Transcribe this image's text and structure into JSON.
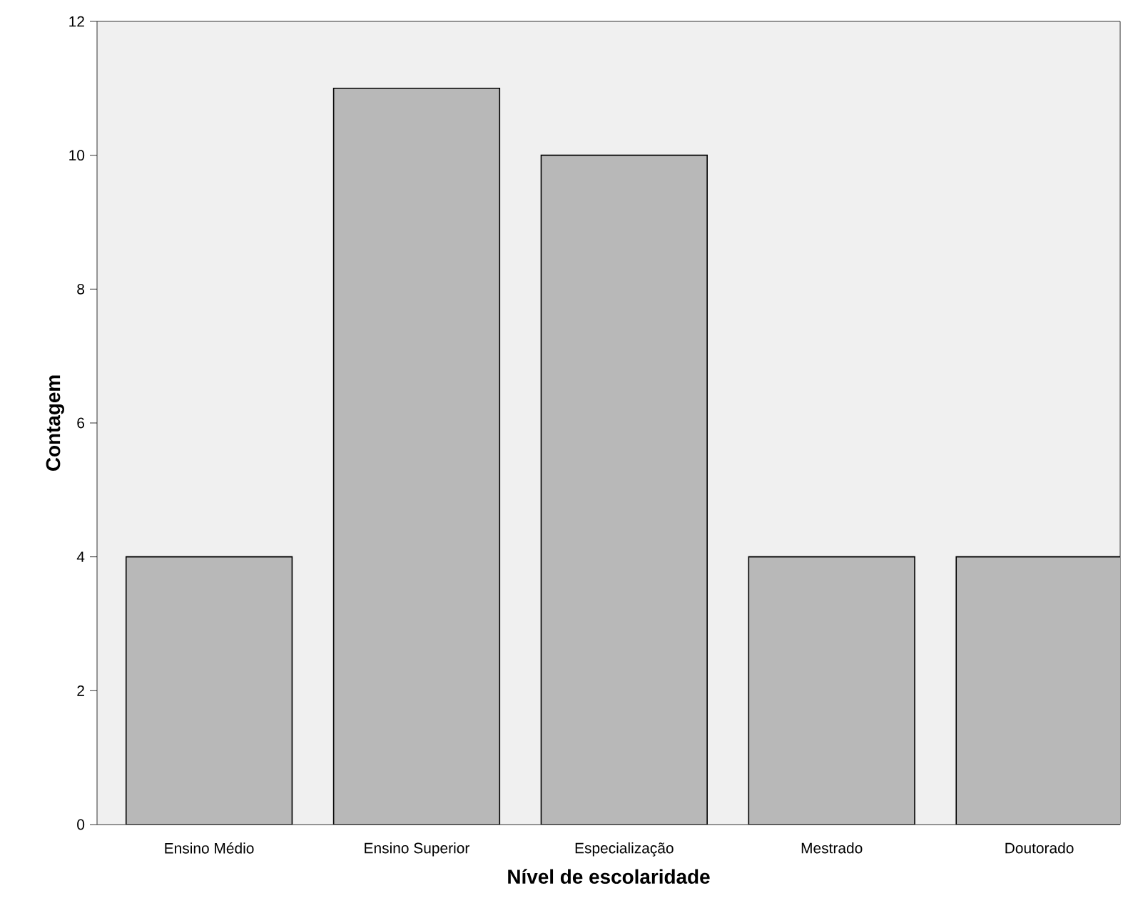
{
  "chart_data": {
    "type": "bar",
    "xlabel": "Nível de escolaridade",
    "ylabel": "Contagem",
    "categories": [
      "Ensino Médio",
      "Ensino Superior",
      "Especialização",
      "Mestrado",
      "Doutorado"
    ],
    "values": [
      4,
      11,
      10,
      4,
      4
    ],
    "color": "#b8b8b8",
    "ylim": [
      0,
      12
    ],
    "yticks": [
      0,
      2,
      4,
      6,
      8,
      10,
      12
    ]
  }
}
